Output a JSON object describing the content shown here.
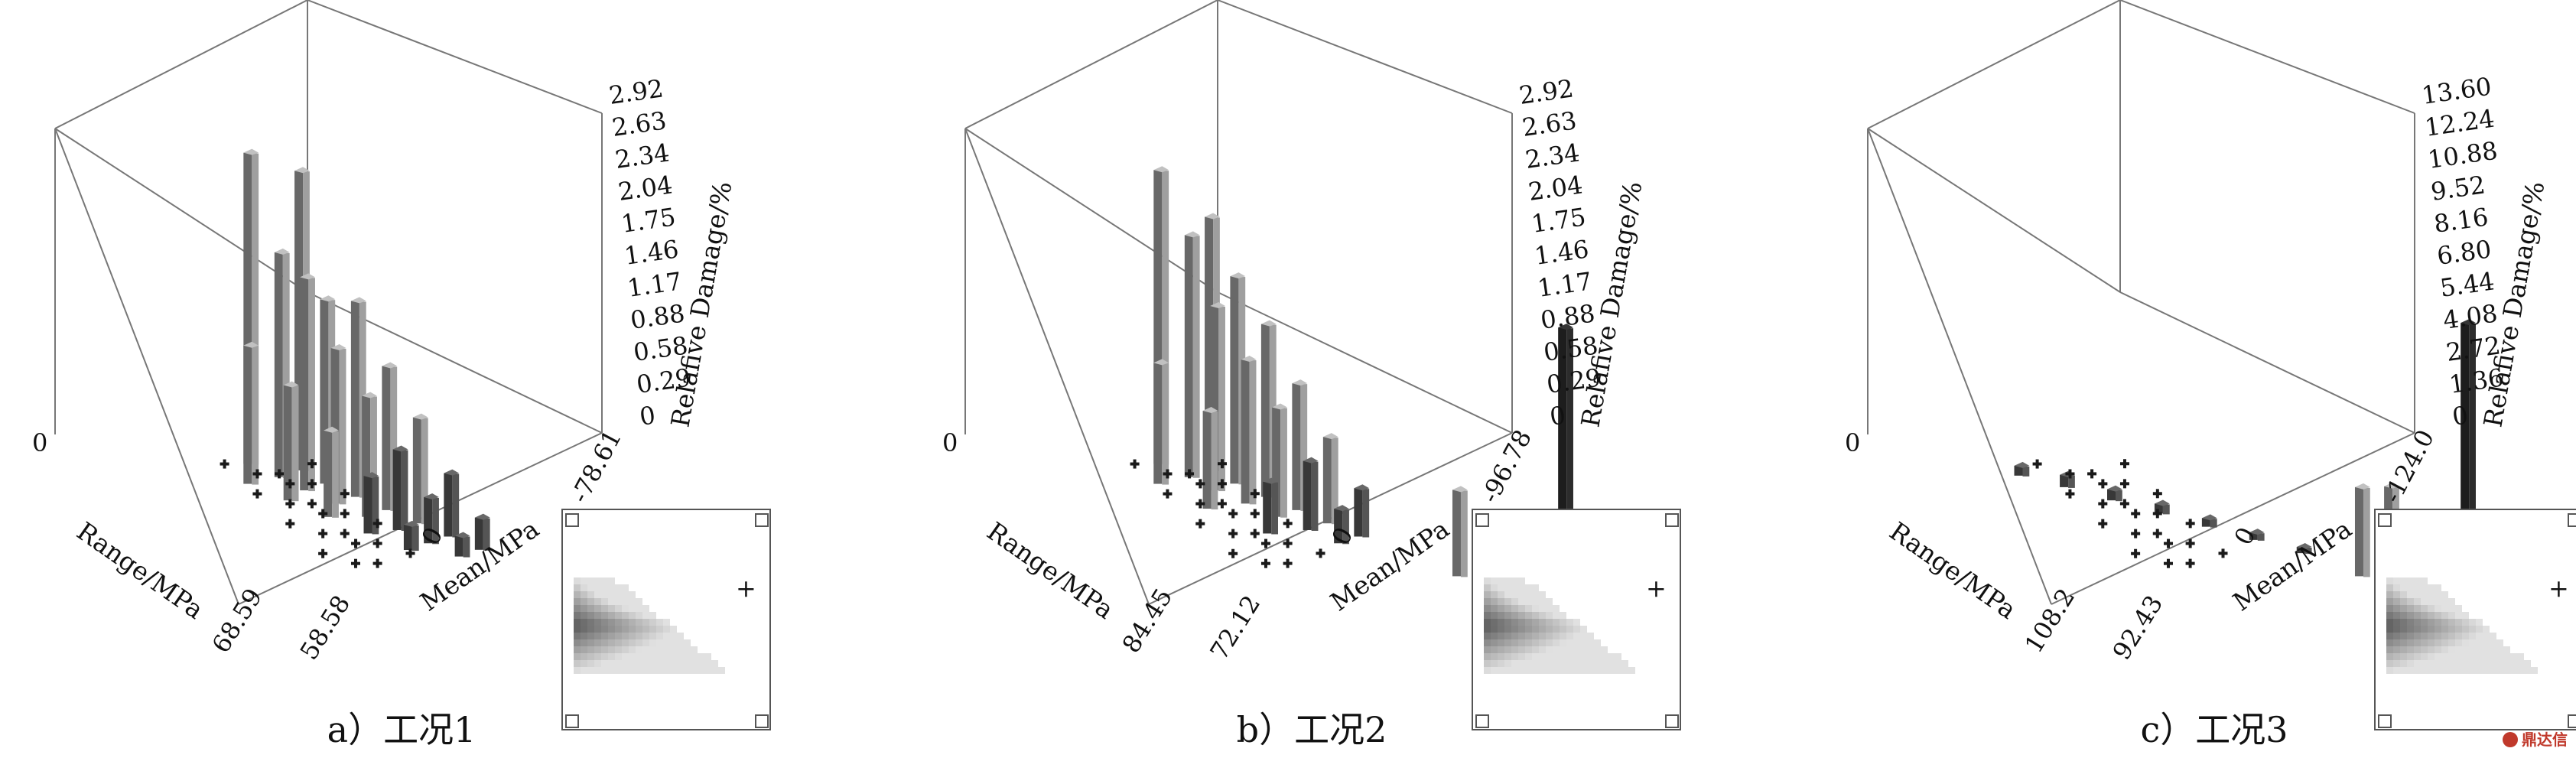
{
  "figure": {
    "watermark": "鼎达信"
  },
  "chart_data": [
    {
      "type": "bar3d",
      "caption": "a）工况1",
      "xlabel": "Range/MPa",
      "ylabel": "Mean/MPa",
      "zlabel": "Relafive Damage/%",
      "range_ticks": [
        "0",
        "68.59"
      ],
      "mean_ticks": [
        "-78.61",
        "0",
        "58.58"
      ],
      "z_ticks": [
        "0",
        "0.29",
        "0.58",
        "0.88",
        "1.17",
        "1.46",
        "1.75",
        "2.04",
        "2.34",
        "2.63",
        "2.92"
      ],
      "zlim": [
        0,
        2.92
      ],
      "grid": false,
      "inset": "top-view contour (Range vs Mean)",
      "bars": [
        {
          "range_frac": 0.18,
          "mean_frac": 0.3,
          "value": 2.7
        },
        {
          "range_frac": 0.22,
          "mean_frac": 0.38,
          "value": 2.6
        },
        {
          "range_frac": 0.26,
          "mean_frac": 0.33,
          "value": 1.95
        },
        {
          "range_frac": 0.3,
          "mean_frac": 0.4,
          "value": 1.6
        },
        {
          "range_frac": 0.34,
          "mean_frac": 0.35,
          "value": 1.85
        },
        {
          "range_frac": 0.38,
          "mean_frac": 0.43,
          "value": 1.7
        },
        {
          "range_frac": 0.42,
          "mean_frac": 0.38,
          "value": 1.35
        },
        {
          "range_frac": 0.46,
          "mean_frac": 0.46,
          "value": 1.25
        },
        {
          "range_frac": 0.5,
          "mean_frac": 0.41,
          "value": 1.05
        },
        {
          "range_frac": 0.54,
          "mean_frac": 0.49,
          "value": 0.92
        },
        {
          "range_frac": 0.58,
          "mean_frac": 0.44,
          "value": 0.7
        },
        {
          "range_frac": 0.62,
          "mean_frac": 0.52,
          "value": 0.55
        },
        {
          "range_frac": 0.66,
          "mean_frac": 0.47,
          "value": 0.4
        },
        {
          "range_frac": 0.7,
          "mean_frac": 0.55,
          "value": 0.28
        },
        {
          "range_frac": 0.74,
          "mean_frac": 0.5,
          "value": 0.18
        },
        {
          "range_frac": 0.3,
          "mean_frac": 0.26,
          "value": 1.2
        },
        {
          "range_frac": 0.4,
          "mean_frac": 0.3,
          "value": 1.0
        },
        {
          "range_frac": 0.5,
          "mean_frac": 0.34,
          "value": 0.75
        },
        {
          "range_frac": 0.6,
          "mean_frac": 0.38,
          "value": 0.5
        },
        {
          "range_frac": 0.7,
          "mean_frac": 0.42,
          "value": 0.22
        },
        {
          "range_frac": 0.95,
          "mean_frac": 0.82,
          "value": 0.15
        }
      ]
    },
    {
      "type": "bar3d",
      "caption": "b）工况2",
      "xlabel": "Range/MPa",
      "ylabel": "Mean/MPa",
      "zlabel": "Relafive Damage/%",
      "range_ticks": [
        "0",
        "84.45"
      ],
      "mean_ticks": [
        "-96.78",
        "0",
        "72.12"
      ],
      "z_ticks": [
        "0",
        "0.29",
        "0.58",
        "0.88",
        "1.17",
        "1.46",
        "1.75",
        "2.04",
        "2.34",
        "2.63",
        "2.92"
      ],
      "zlim": [
        0,
        2.92
      ],
      "grid": false,
      "inset": "top-view contour (Range vs Mean)",
      "bars": [
        {
          "range_frac": 0.18,
          "mean_frac": 0.3,
          "value": 2.55
        },
        {
          "range_frac": 0.22,
          "mean_frac": 0.38,
          "value": 2.2
        },
        {
          "range_frac": 0.26,
          "mean_frac": 0.33,
          "value": 2.1
        },
        {
          "range_frac": 0.3,
          "mean_frac": 0.4,
          "value": 1.8
        },
        {
          "range_frac": 0.34,
          "mean_frac": 0.35,
          "value": 1.6
        },
        {
          "range_frac": 0.38,
          "mean_frac": 0.43,
          "value": 1.5
        },
        {
          "range_frac": 0.42,
          "mean_frac": 0.38,
          "value": 1.25
        },
        {
          "range_frac": 0.46,
          "mean_frac": 0.46,
          "value": 1.1
        },
        {
          "range_frac": 0.5,
          "mean_frac": 0.41,
          "value": 0.95
        },
        {
          "range_frac": 0.54,
          "mean_frac": 0.49,
          "value": 0.75
        },
        {
          "range_frac": 0.58,
          "mean_frac": 0.44,
          "value": 0.6
        },
        {
          "range_frac": 0.62,
          "mean_frac": 0.52,
          "value": 0.42
        },
        {
          "range_frac": 0.66,
          "mean_frac": 0.47,
          "value": 0.3
        },
        {
          "range_frac": 0.3,
          "mean_frac": 0.26,
          "value": 1.05
        },
        {
          "range_frac": 0.45,
          "mean_frac": 0.3,
          "value": 0.85
        },
        {
          "range_frac": 0.6,
          "mean_frac": 0.36,
          "value": 0.45
        },
        {
          "range_frac": 0.86,
          "mean_frac": 0.62,
          "value": 0.75
        },
        {
          "range_frac": 0.9,
          "mean_frac": 0.66,
          "value": 0.6
        },
        {
          "range_frac": 0.96,
          "mean_frac": 0.78,
          "value": 2.3
        }
      ]
    },
    {
      "type": "bar3d",
      "caption": "c）工况3",
      "xlabel": "Range/MPa",
      "ylabel": "Mean/MPa",
      "zlabel": "Relafive Damage/%",
      "range_ticks": [
        "0",
        "108.2"
      ],
      "mean_ticks": [
        "-124.0",
        "0",
        "92.43"
      ],
      "z_ticks": [
        "0",
        "1.36",
        "2.72",
        "4.08",
        "5.44",
        "6.80",
        "8.16",
        "9.52",
        "10.88",
        "12.24",
        "13.60"
      ],
      "zlim": [
        0,
        13.6
      ],
      "grid": false,
      "inset": "top-view contour (Range vs Mean)",
      "bars": [
        {
          "range_frac": 0.25,
          "mean_frac": 0.2,
          "value": 0.4
        },
        {
          "range_frac": 0.32,
          "mean_frac": 0.26,
          "value": 0.5
        },
        {
          "range_frac": 0.4,
          "mean_frac": 0.32,
          "value": 0.45
        },
        {
          "range_frac": 0.48,
          "mean_frac": 0.38,
          "value": 0.4
        },
        {
          "range_frac": 0.56,
          "mean_frac": 0.44,
          "value": 0.35
        },
        {
          "range_frac": 0.64,
          "mean_frac": 0.5,
          "value": 0.3
        },
        {
          "range_frac": 0.72,
          "mean_frac": 0.56,
          "value": 0.25
        },
        {
          "range_frac": 0.86,
          "mean_frac": 0.62,
          "value": 3.6
        },
        {
          "range_frac": 0.9,
          "mean_frac": 0.66,
          "value": 3.9
        },
        {
          "range_frac": 0.96,
          "mean_frac": 0.78,
          "value": 10.9
        }
      ]
    }
  ]
}
